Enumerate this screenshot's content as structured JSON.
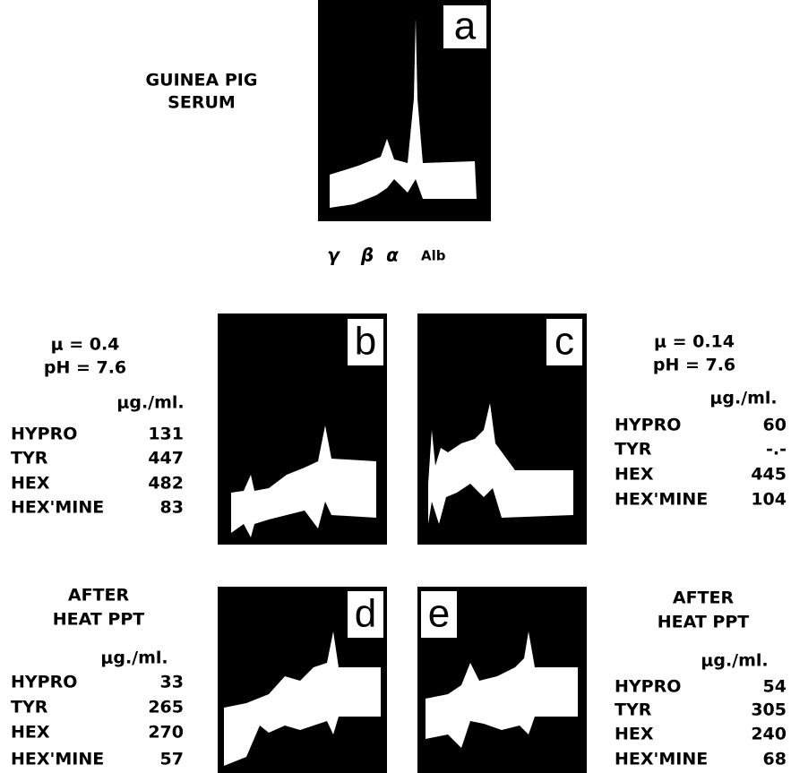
{
  "header": {
    "title_lines": [
      "GUINEA PIG",
      "SERUM"
    ]
  },
  "panels": [
    {
      "label": "a"
    },
    {
      "label": "b"
    },
    {
      "label": "c"
    },
    {
      "label": "d"
    },
    {
      "label": "e"
    }
  ],
  "axis_labels": [
    "γ",
    "β",
    "α",
    "Alb"
  ],
  "tables": [
    {
      "heading": [
        "μ = 0.4",
        "pH = 7.6"
      ],
      "unit": "μg./ml.",
      "rows": [
        [
          "HYPRO",
          131
        ],
        [
          "TYR",
          447
        ],
        [
          "HEX",
          482
        ],
        [
          "HEX'MINE",
          83
        ]
      ]
    },
    {
      "heading": [
        "μ = 0.14",
        "pH = 7.6"
      ],
      "unit": "μg./ml.",
      "rows": [
        [
          "HYPRO",
          60
        ],
        [
          "TYR",
          "-.-"
        ],
        [
          "HEX",
          445
        ],
        [
          "HEX'MINE",
          104
        ]
      ]
    },
    {
      "heading": [
        "AFTER",
        "HEAT PPT"
      ],
      "unit": "μg./ml.",
      "rows": [
        [
          "HYPRO",
          33
        ],
        [
          "TYR",
          265
        ],
        [
          "HEX",
          270
        ],
        [
          "HEX'MINE",
          57
        ]
      ]
    },
    {
      "heading": [
        "AFTER",
        "HEAT PPT"
      ],
      "unit": "μg./ml.",
      "rows": [
        [
          "HYPRO",
          54
        ],
        [
          "TYR",
          305
        ],
        [
          "HEX",
          240
        ],
        [
          "HEX'MINE",
          68
        ]
      ]
    }
  ]
}
